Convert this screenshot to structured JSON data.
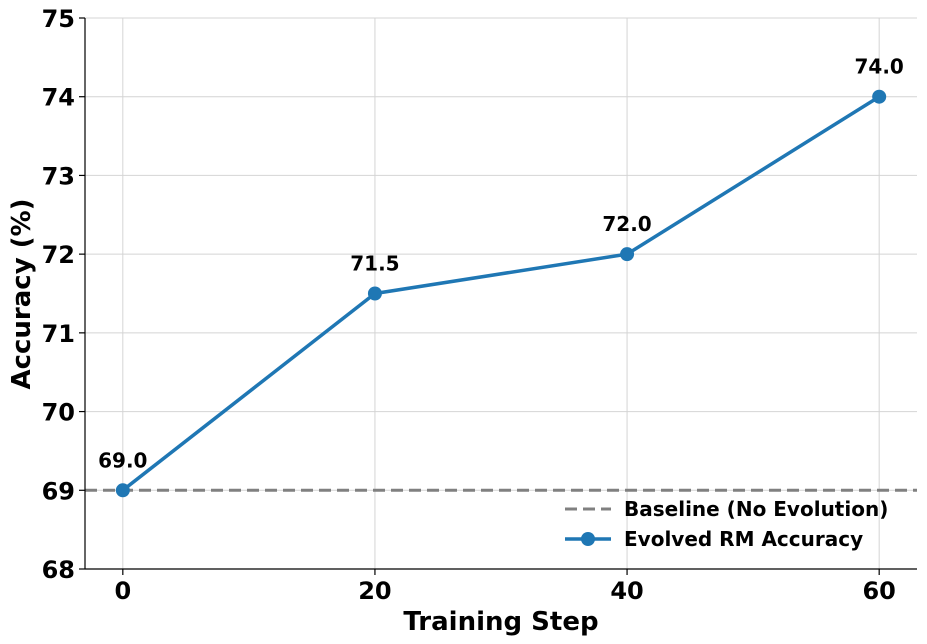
{
  "chart_data": {
    "type": "line",
    "title": "",
    "xlabel": "Training Step",
    "ylabel": "Accuracy (%)",
    "xlim": [
      -3,
      63
    ],
    "ylim": [
      68,
      75
    ],
    "x_ticks": [
      0,
      20,
      40,
      60
    ],
    "y_ticks": [
      68,
      69,
      70,
      71,
      72,
      73,
      74,
      75
    ],
    "grid": true,
    "legend_position": "bottom-right",
    "series": [
      {
        "name": "Evolved RM Accuracy",
        "x": [
          0,
          20,
          40,
          60
        ],
        "values": [
          69.0,
          71.5,
          72.0,
          74.0
        ],
        "labels": [
          "69.0",
          "71.5",
          "72.0",
          "74.0"
        ],
        "color": "#1f77b4",
        "style": "solid-marker"
      }
    ],
    "reference_lines": [
      {
        "name": "Baseline (No Evolution)",
        "y": 69,
        "color": "#808080",
        "style": "dashed"
      }
    ]
  }
}
